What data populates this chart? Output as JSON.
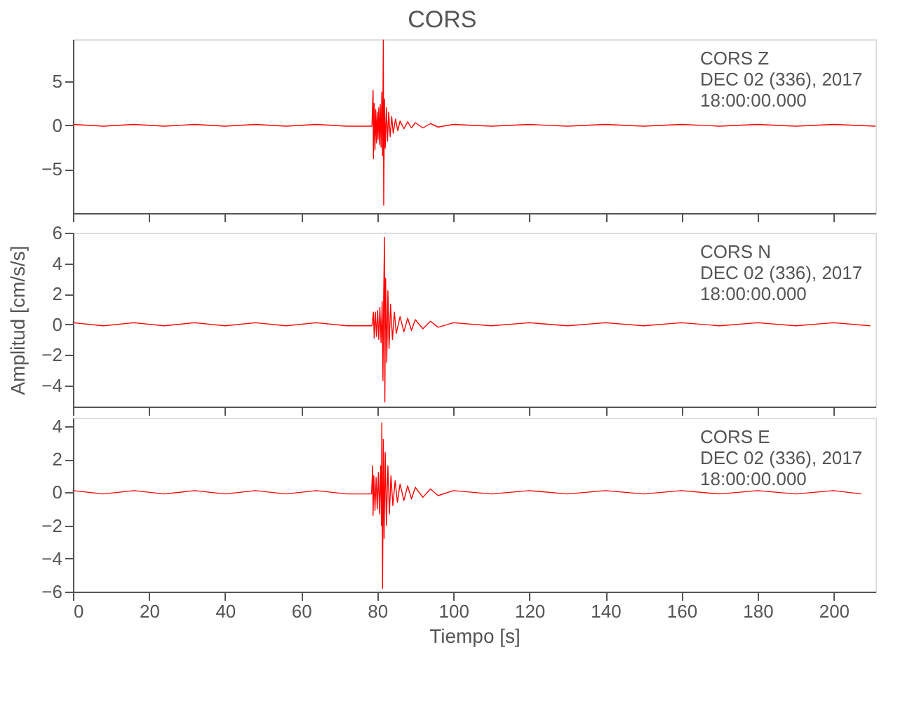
{
  "chart_data": [
    {
      "type": "line",
      "title": "CORS",
      "annotations": [
        "CORS   Z",
        "DEC 02 (336), 2017",
        "18:00:00.000"
      ],
      "xlim": [
        0,
        211
      ],
      "xticks": [
        0,
        20,
        40,
        60,
        80,
        100,
        120,
        140,
        160,
        180,
        200
      ],
      "ylim": [
        -10,
        9.8
      ],
      "yticks": [
        -5,
        0,
        5
      ],
      "tick_labels": "y",
      "grid": false,
      "marker": "none",
      "line_style": "solid",
      "series": [
        {
          "color": "#ff0000",
          "x": [
            0,
            8,
            16,
            24,
            32,
            40,
            48,
            56,
            64,
            72,
            78.6,
            78.9,
            79.0,
            79.2,
            79.4,
            79.6,
            79.8,
            80.0,
            80.2,
            80.4,
            80.6,
            80.8,
            81.0,
            81.2,
            81.4,
            81.6,
            81.7,
            81.9,
            82.1,
            82.4,
            82.7,
            83.0,
            83.4,
            83.8,
            84.2,
            84.8,
            85.4,
            86,
            87,
            88,
            89,
            90,
            92,
            94,
            96,
            100,
            110,
            120,
            130,
            140,
            150,
            160,
            170,
            180,
            190,
            200,
            211
          ],
          "values": [
            0.1,
            -0.1,
            0.1,
            -0.1,
            0.1,
            -0.1,
            0.1,
            -0.1,
            0.1,
            -0.1,
            -0.1,
            4.0,
            -3.8,
            2.5,
            -2.8,
            1.8,
            -2.0,
            1.5,
            -1.6,
            2.0,
            -2.2,
            2.4,
            -2.5,
            3.8,
            -3.5,
            9.7,
            -9.1,
            3.0,
            -2.6,
            2.0,
            -1.8,
            1.5,
            -1.3,
            1.0,
            -0.9,
            0.7,
            -0.6,
            0.5,
            -0.4,
            0.4,
            -0.3,
            0.3,
            -0.3,
            0.2,
            -0.2,
            0.1,
            -0.1,
            0.1,
            -0.1,
            0.1,
            -0.1,
            0.1,
            -0.1,
            0.1,
            -0.1,
            0.1,
            -0.1
          ]
        }
      ]
    },
    {
      "type": "line",
      "ylabel": "Amplitud [cm/s/s]",
      "annotations": [
        "CORS   N",
        "DEC 02 (336), 2017",
        "18:00:00.000"
      ],
      "xlim": [
        0,
        211
      ],
      "xticks": [
        0,
        20,
        40,
        60,
        80,
        100,
        120,
        140,
        160,
        180,
        200
      ],
      "ylim": [
        -5.4,
        6
      ],
      "yticks": [
        -4,
        -2,
        0,
        2,
        4,
        6
      ],
      "tick_labels": "y",
      "grid": false,
      "marker": "none",
      "line_style": "solid",
      "series": [
        {
          "color": "#ff0000",
          "x": [
            0,
            8,
            16,
            24,
            32,
            40,
            48,
            56,
            64,
            72,
            78.6,
            79.0,
            79.2,
            79.5,
            79.8,
            80.1,
            80.4,
            80.7,
            81.0,
            81.3,
            81.5,
            81.7,
            81.9,
            82.0,
            82.2,
            82.5,
            82.8,
            83.1,
            83.5,
            84.0,
            84.5,
            85,
            86,
            87,
            88,
            89,
            90,
            92,
            94,
            96,
            100,
            110,
            120,
            130,
            140,
            150,
            160,
            170,
            180,
            190,
            200,
            209.6
          ],
          "values": [
            0.1,
            -0.1,
            0.1,
            -0.1,
            0.1,
            -0.1,
            0.1,
            -0.1,
            0.1,
            -0.1,
            -0.1,
            0.8,
            -0.9,
            0.8,
            -0.8,
            0.9,
            -1.0,
            1.1,
            -1.2,
            1.5,
            -3.7,
            2.0,
            5.7,
            -5.1,
            3.0,
            -2.5,
            2.2,
            -1.6,
            1.3,
            -1.0,
            0.8,
            -0.6,
            0.5,
            -0.5,
            0.4,
            -0.4,
            0.3,
            -0.3,
            0.2,
            -0.2,
            0.1,
            -0.1,
            0.1,
            -0.1,
            0.1,
            -0.1,
            0.1,
            -0.1,
            0.1,
            -0.1,
            0.1,
            -0.1
          ]
        }
      ]
    },
    {
      "type": "line",
      "xlabel": "Tiempo [s]",
      "annotations": [
        "CORS   E",
        "DEC 02 (336), 2017",
        "18:00:00.000"
      ],
      "xlim": [
        0,
        211
      ],
      "xticks": [
        0,
        20,
        40,
        60,
        80,
        100,
        120,
        140,
        160,
        180,
        200
      ],
      "ylim": [
        -6,
        4.5
      ],
      "yticks": [
        -6,
        -4,
        -2,
        0,
        2,
        4
      ],
      "grid": false,
      "marker": "none",
      "line_style": "solid",
      "series": [
        {
          "color": "#ff0000",
          "x": [
            0,
            8,
            16,
            24,
            32,
            40,
            48,
            56,
            64,
            72,
            78.5,
            78.8,
            78.9,
            79.1,
            79.4,
            79.7,
            80.0,
            80.3,
            80.6,
            80.9,
            81.1,
            81.2,
            81.4,
            81.6,
            81.8,
            82.1,
            82.4,
            82.8,
            83.2,
            83.6,
            84.1,
            84.7,
            85.3,
            86,
            87,
            88,
            89,
            90,
            92,
            94,
            96,
            100,
            110,
            120,
            130,
            140,
            150,
            160,
            170,
            180,
            190,
            200,
            207.3
          ],
          "values": [
            0.1,
            -0.1,
            0.1,
            -0.1,
            0.1,
            -0.1,
            0.1,
            -0.1,
            0.1,
            -0.1,
            -0.1,
            1.6,
            -1.4,
            1.0,
            -1.1,
            0.9,
            -1.0,
            1.2,
            -1.3,
            1.6,
            -2.0,
            4.2,
            -5.8,
            3.2,
            -2.8,
            2.4,
            -2.0,
            1.6,
            -1.3,
            1.0,
            -0.8,
            0.7,
            -0.6,
            0.5,
            -0.5,
            0.4,
            -0.4,
            0.3,
            -0.3,
            0.2,
            -0.2,
            0.1,
            -0.1,
            0.1,
            -0.1,
            0.1,
            -0.1,
            0.1,
            -0.1,
            0.1,
            -0.1,
            0.1,
            -0.1
          ]
        }
      ]
    }
  ]
}
